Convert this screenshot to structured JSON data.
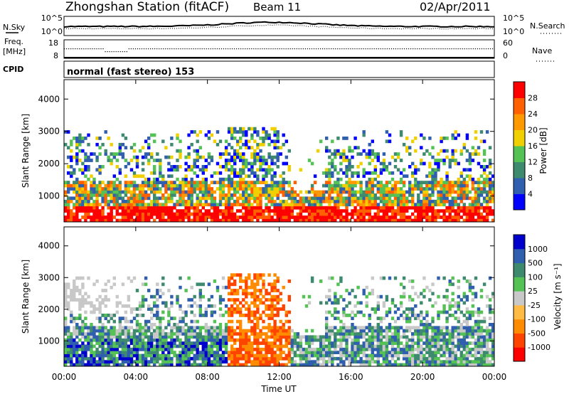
{
  "header": {
    "title": "Zhongshan Station (fitACF)",
    "beam": "Beam 11",
    "date": "02/Apr/2011"
  },
  "nsky_panel": {
    "left_label": "N.Sky",
    "right_label": "N.Search",
    "left_ticks": [
      "10^5",
      "10^0"
    ],
    "right_ticks": [
      "10^5",
      "10^0"
    ]
  },
  "freq_panel": {
    "left_label_1": "Freq.",
    "left_label_2": "[MHz]",
    "right_label": "Nave",
    "left_ticks": [
      "18",
      "8"
    ],
    "right_ticks": [
      "60",
      "0"
    ]
  },
  "cpid": {
    "label": "CPID",
    "value": "normal (fast stereo) 153"
  },
  "colors": {
    "power_scale": [
      "#0000ff",
      "#2f5fae",
      "#3e8a6e",
      "#55c255",
      "#f0d000",
      "#ff9900",
      "#ff6000",
      "#ff0000"
    ],
    "velocity_scale": [
      "#ff0000",
      "#ff4400",
      "#ff8c00",
      "#ffbb44",
      "#c8c8c8",
      "#55c255",
      "#3e8a6e",
      "#2f5fae",
      "#0000cd"
    ]
  },
  "chart_data": [
    {
      "type": "heatmap",
      "name": "power",
      "ylabel": "Slant Range [km]",
      "yticks": [
        "4000",
        "3000",
        "2000",
        "1000"
      ],
      "ylim": [
        200,
        4600
      ],
      "xlim": [
        "00:00",
        "00:00"
      ],
      "colorbar_label": "Power [dB]",
      "colorbar_ticks": [
        "28",
        "24",
        "20",
        "16",
        "12",
        "8",
        "4"
      ]
    },
    {
      "type": "heatmap",
      "name": "velocity",
      "ylabel": "Slant Range [km]",
      "yticks": [
        "4000",
        "3000",
        "2000",
        "1000"
      ],
      "ylim": [
        200,
        4600
      ],
      "colorbar_label": "Velocity [m s⁻¹]",
      "colorbar_ticks": [
        "1000",
        "500",
        "100",
        "25",
        "-25",
        "-100",
        "-500",
        "-1000"
      ]
    }
  ],
  "xaxis": {
    "ticks": [
      "00:00",
      "04:00",
      "08:00",
      "12:00",
      "16:00",
      "20:00",
      "00:00"
    ],
    "label": "Time UT"
  }
}
